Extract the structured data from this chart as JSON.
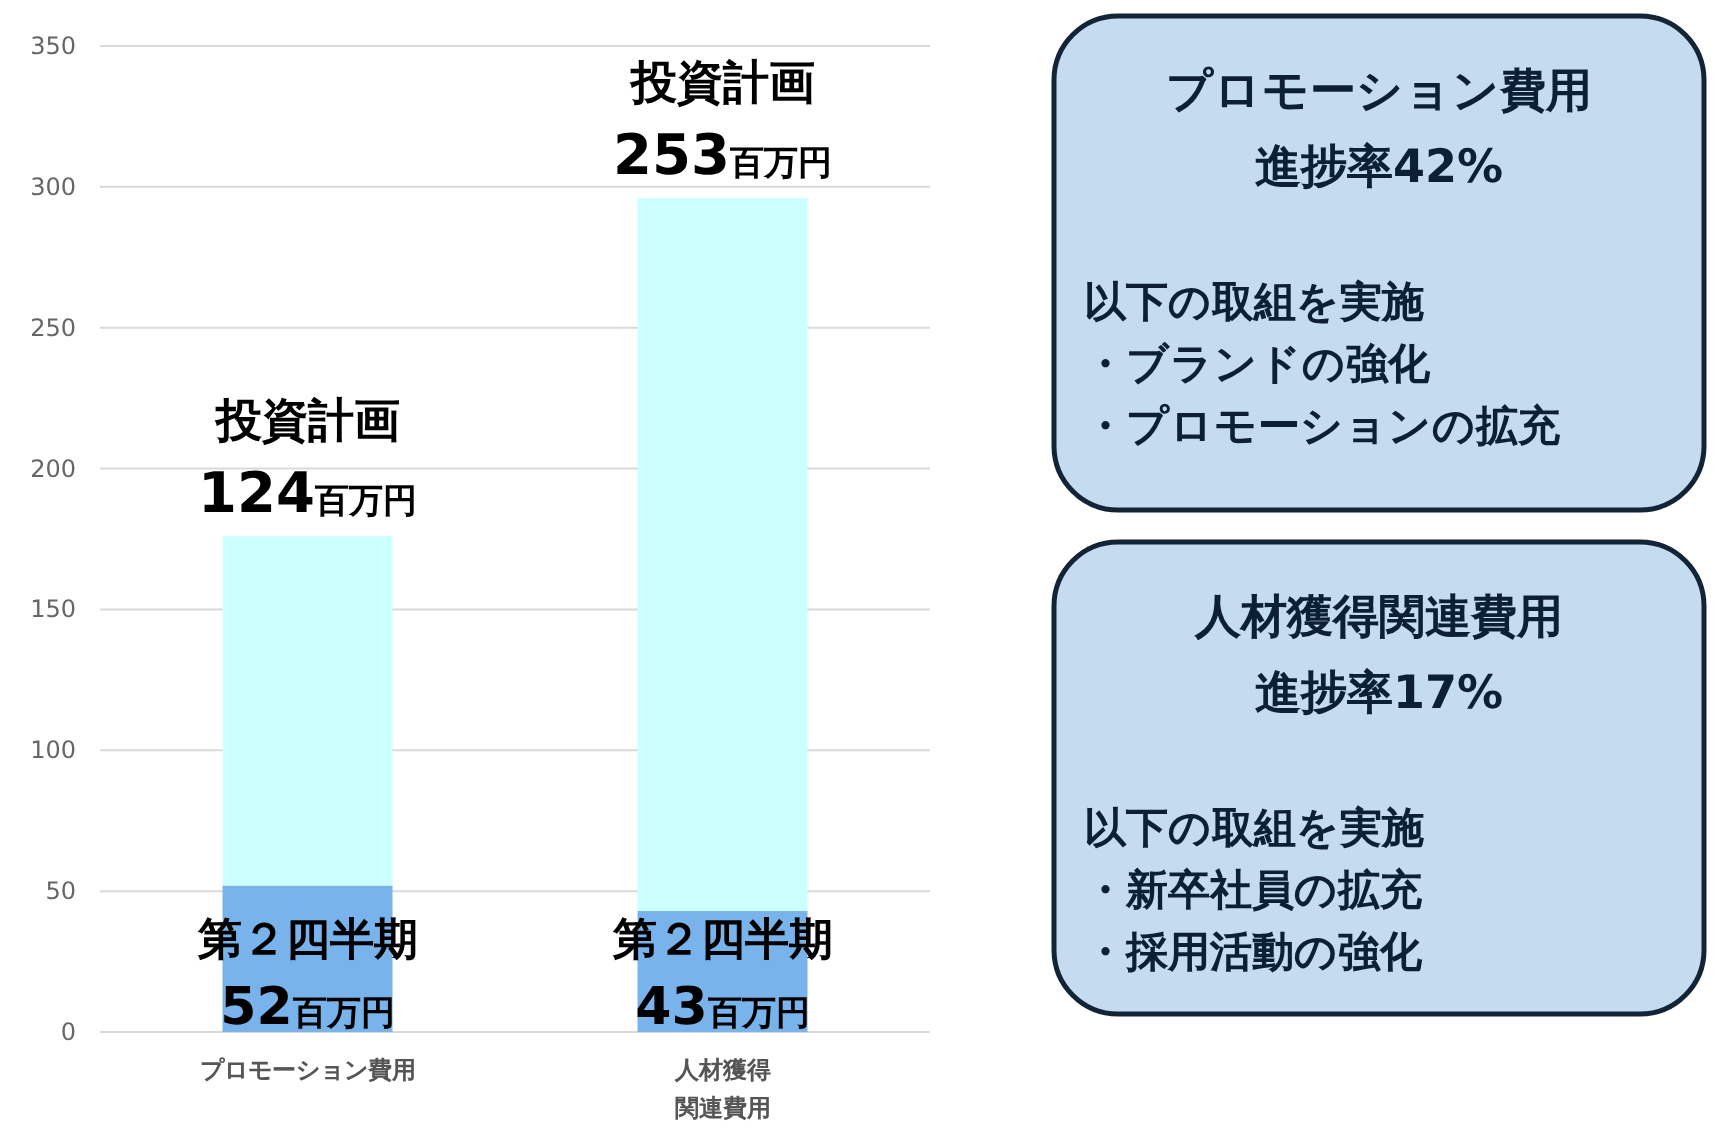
{
  "chart_data": [
    {
      "type": "bar",
      "stacked": true,
      "categories": [
        "プロモーション費用",
        "人材獲得関連費用"
      ],
      "ylim": [
        0,
        350
      ],
      "yticks": [
        0,
        50,
        100,
        150,
        200,
        250,
        300,
        350
      ],
      "grid": "y",
      "series": [
        {
          "color": "#78b4eb",
          "values": [
            52,
            43
          ],
          "value_labels": [
            "第２四半期\n52百万円",
            "第２四半期\n43百万円"
          ]
        },
        {
          "color": "#ccffff",
          "values": [
            124,
            253
          ],
          "value_labels": [
            "投資計画\n124百万円",
            "投資計画\n253百万円"
          ]
        }
      ]
    },
    {
      "type": "other",
      "title": "プロモーション費用",
      "subtitle": "進捗率42%",
      "annotations": [
        "以下の取組を実施",
        "・ブランドの強化",
        "・プロモーションの拡充"
      ]
    },
    {
      "type": "other",
      "title": "人材獲得関連費用",
      "subtitle": "進捗率17%",
      "annotations": [
        "以下の取組を実施",
        "・新卒社員の拡充",
        "・採用活動の強化"
      ]
    }
  ]
}
